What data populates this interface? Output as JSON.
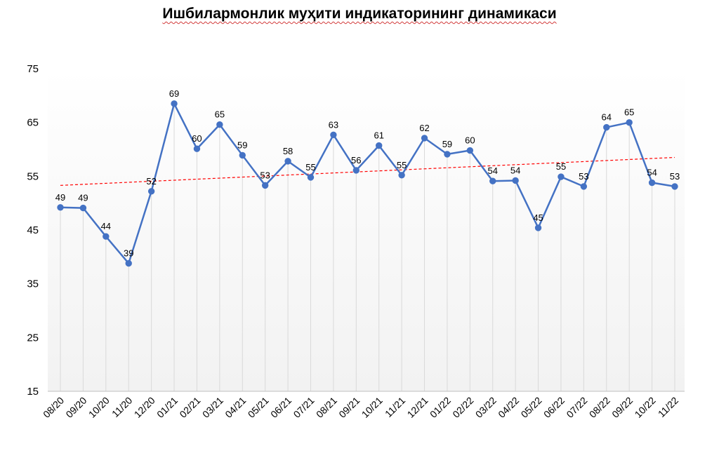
{
  "chart_data": {
    "type": "line",
    "title": "Ишбилармонлик муҳити индикаторининг динамикаси",
    "categories": [
      "08/20",
      "09/20",
      "10/20",
      "11/20",
      "12/20",
      "01/21",
      "02/21",
      "03/21",
      "04/21",
      "05/21",
      "06/21",
      "07/21",
      "08/21",
      "09/21",
      "10/21",
      "11/21",
      "12/21",
      "01/22",
      "02/22",
      "03/22",
      "04/22",
      "05/22",
      "06/22",
      "07/22",
      "08/22",
      "09/22",
      "10/22",
      "11/22"
    ],
    "series": [
      {
        "values": [
          49.2,
          49.1,
          43.8,
          38.8,
          52.2,
          68.5,
          60.1,
          64.6,
          58.9,
          53.3,
          57.8,
          54.8,
          62.7,
          56.1,
          60.7,
          55.2,
          62.1,
          59.1,
          59.8,
          54.1,
          54.2,
          45.4,
          54.9,
          53.1,
          64.1,
          65.0,
          53.8,
          53.1
        ],
        "labels": [
          "49",
          "49",
          "44",
          "39",
          "52",
          "69",
          "60",
          "65",
          "59",
          "53",
          "58",
          "55",
          "63",
          "56",
          "61",
          "55",
          "62",
          "59",
          "60",
          "54",
          "54",
          "45",
          "55",
          "53",
          "64",
          "65",
          "54",
          "53"
        ],
        "color": "#4472c4"
      }
    ],
    "trendline": {
      "start": 53.3,
      "end": 58.5,
      "color": "#ff0000",
      "style": "dashed"
    },
    "yticks": [
      "15",
      "25",
      "35",
      "45",
      "55",
      "65",
      "75"
    ],
    "ylim": [
      15,
      75
    ],
    "grid": "vertical lines at categories",
    "legend": "none",
    "background_gradient": [
      "#ffffff",
      "#f2f2f2"
    ]
  }
}
